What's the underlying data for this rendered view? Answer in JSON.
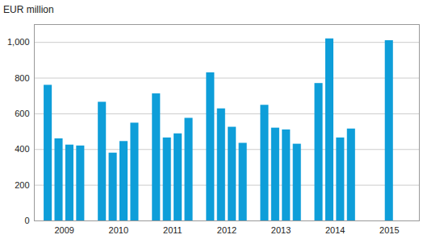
{
  "chart_data": {
    "type": "bar",
    "ylabel": "EUR million",
    "categories": [
      "2009",
      "2010",
      "2011",
      "2012",
      "2013",
      "2014",
      "2015"
    ],
    "values": [
      [
        760,
        460,
        425,
        420
      ],
      [
        665,
        380,
        445,
        548
      ],
      [
        712,
        465,
        488,
        575
      ],
      [
        830,
        628,
        525,
        435
      ],
      [
        648,
        520,
        510,
        430
      ],
      [
        770,
        1020,
        465,
        515
      ],
      [
        1010
      ]
    ],
    "color": "#0e9ed9",
    "ylim": [
      0,
      1100
    ],
    "yticks": [
      0,
      200,
      400,
      600,
      800,
      1000
    ],
    "grid": true
  }
}
